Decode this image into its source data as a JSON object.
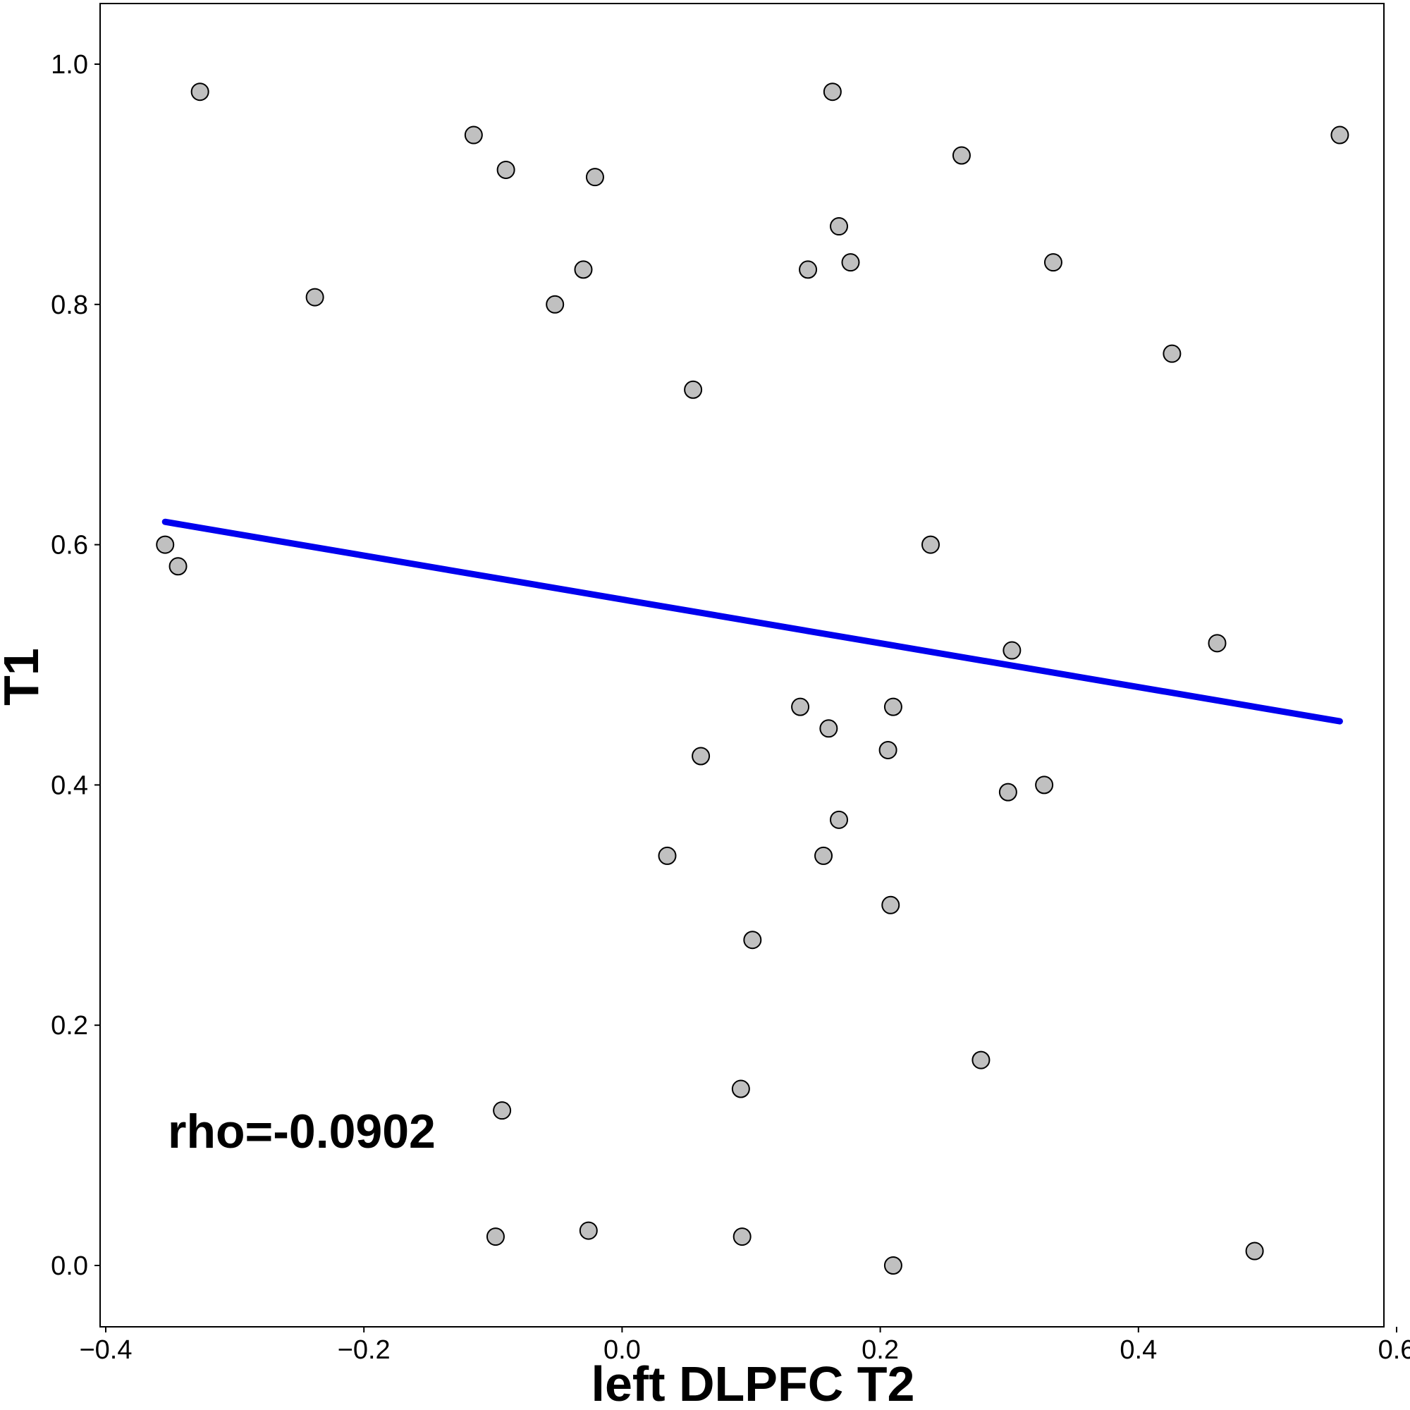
{
  "chart_data": {
    "type": "scatter",
    "title": "",
    "xlabel": "left DLPFC T2",
    "ylabel": "T1",
    "xlim": [
      -0.41,
      0.61
    ],
    "ylim": [
      -0.05,
      1.05
    ],
    "xticks": [
      -0.4,
      -0.2,
      0.0,
      0.2,
      0.4,
      0.6
    ],
    "xtick_labels": [
      "−0.4",
      "−0.2",
      "0.0",
      "0.2",
      "0.4",
      "0.6"
    ],
    "yticks": [
      0.0,
      0.2,
      0.4,
      0.6,
      0.8,
      1.0
    ],
    "ytick_labels": [
      "0.0",
      "0.2",
      "0.4",
      "0.6",
      "0.8",
      "1.0"
    ],
    "grid": false,
    "points": [
      {
        "x": -0.327,
        "y": 0.977
      },
      {
        "x": -0.354,
        "y": 0.6
      },
      {
        "x": -0.344,
        "y": 0.582
      },
      {
        "x": -0.238,
        "y": 0.806
      },
      {
        "x": -0.115,
        "y": 0.941
      },
      {
        "x": -0.09,
        "y": 0.912
      },
      {
        "x": -0.021,
        "y": 0.906
      },
      {
        "x": -0.03,
        "y": 0.829
      },
      {
        "x": -0.052,
        "y": 0.8
      },
      {
        "x": 0.055,
        "y": 0.729
      },
      {
        "x": 0.163,
        "y": 0.977
      },
      {
        "x": 0.168,
        "y": 0.865
      },
      {
        "x": 0.144,
        "y": 0.829
      },
      {
        "x": 0.177,
        "y": 0.835
      },
      {
        "x": 0.263,
        "y": 0.924
      },
      {
        "x": 0.334,
        "y": 0.835
      },
      {
        "x": 0.556,
        "y": 0.941
      },
      {
        "x": 0.426,
        "y": 0.759
      },
      {
        "x": 0.239,
        "y": 0.6
      },
      {
        "x": 0.302,
        "y": 0.512
      },
      {
        "x": 0.461,
        "y": 0.518
      },
      {
        "x": 0.138,
        "y": 0.465
      },
      {
        "x": 0.16,
        "y": 0.447
      },
      {
        "x": 0.21,
        "y": 0.465
      },
      {
        "x": 0.206,
        "y": 0.429
      },
      {
        "x": 0.061,
        "y": 0.424
      },
      {
        "x": 0.299,
        "y": 0.394
      },
      {
        "x": 0.327,
        "y": 0.4
      },
      {
        "x": 0.168,
        "y": 0.371
      },
      {
        "x": 0.035,
        "y": 0.341
      },
      {
        "x": 0.156,
        "y": 0.341
      },
      {
        "x": 0.208,
        "y": 0.3
      },
      {
        "x": 0.101,
        "y": 0.271
      },
      {
        "x": 0.278,
        "y": 0.171
      },
      {
        "x": 0.092,
        "y": 0.147
      },
      {
        "x": -0.093,
        "y": 0.129
      },
      {
        "x": -0.098,
        "y": 0.024
      },
      {
        "x": -0.026,
        "y": 0.029
      },
      {
        "x": 0.093,
        "y": 0.024
      },
      {
        "x": 0.21,
        "y": 0.0
      },
      {
        "x": 0.49,
        "y": 0.012
      }
    ],
    "fit_line": {
      "x": [
        -0.354,
        0.556
      ],
      "y": [
        0.619,
        0.453
      ],
      "color": "#0000ee"
    },
    "annotation": "rho=-0.0902",
    "point_fill": "#c0c0c0",
    "point_stroke": "#000000"
  }
}
